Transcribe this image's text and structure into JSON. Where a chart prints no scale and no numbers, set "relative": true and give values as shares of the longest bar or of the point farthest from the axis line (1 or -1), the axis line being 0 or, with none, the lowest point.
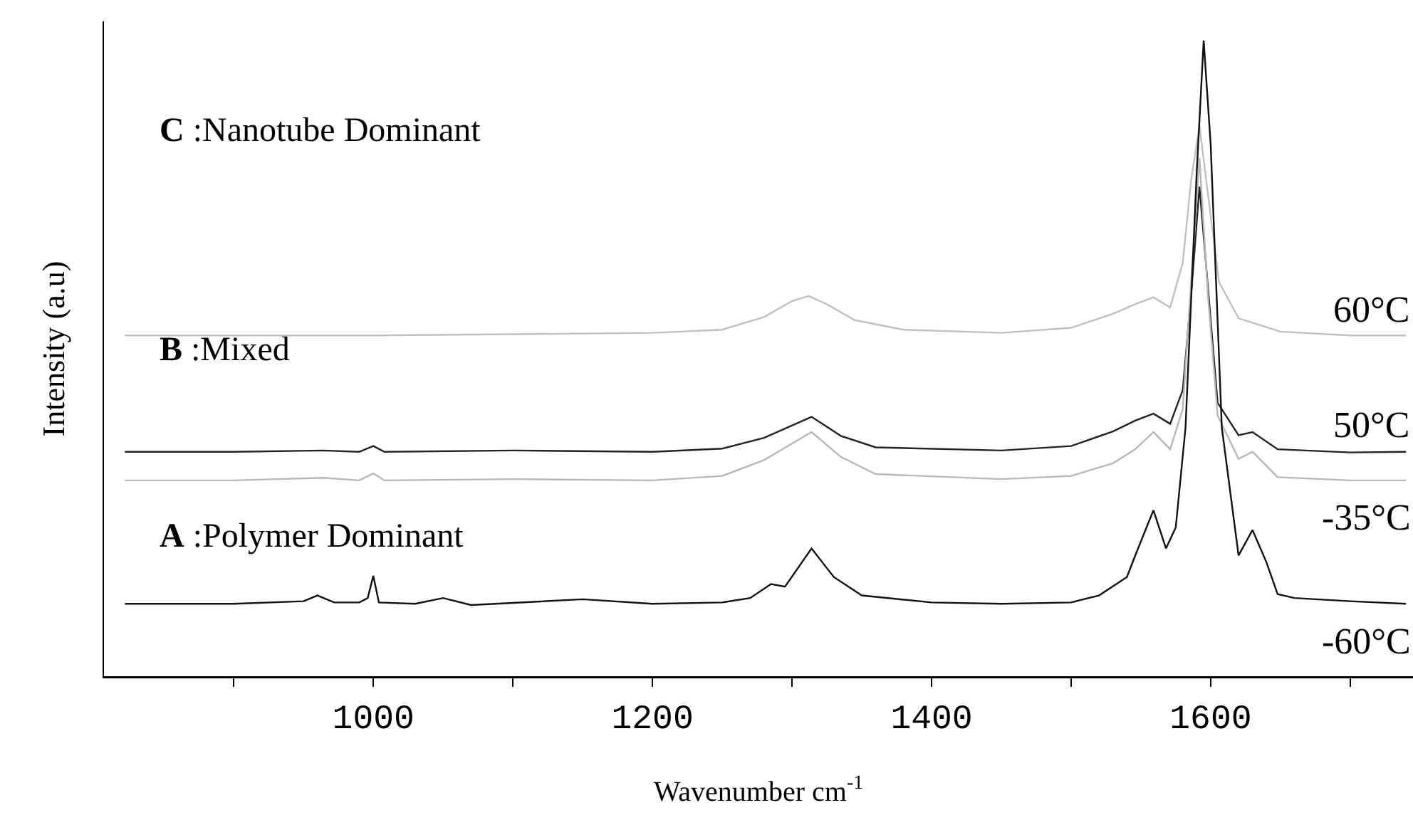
{
  "chart_data": {
    "type": "line",
    "relative": true,
    "xlabel": "Wavenumber cm$^{-1}$",
    "ylabel": "Intensity (a.u)",
    "xlim": [
      807,
      1745
    ],
    "xticks": [
      {
        "value": 900,
        "label": null
      },
      1000,
      {
        "value": 1100,
        "label": null
      },
      1200,
      {
        "value": 1300,
        "label": null
      },
      1400,
      {
        "value": 1500,
        "label": null
      },
      1600,
      {
        "value": 1700,
        "label": null
      }
    ],
    "grid": false,
    "legend": false,
    "marker": "none",
    "line_style": "solid",
    "annotations": [
      "C :Nanotube Dominant",
      "B :Mixed",
      "A :Polymer Dominant"
    ],
    "series": [
      {
        "name": "60°C",
        "color": "#c0c0c0",
        "x": [
          822,
          900,
          1000,
          1100,
          1200,
          1250,
          1280,
          1300,
          1312,
          1325,
          1345,
          1380,
          1450,
          1500,
          1530,
          1546,
          1559,
          1571,
          1580,
          1586,
          1592,
          1598,
          1606,
          1620,
          1650,
          1700,
          1740
        ],
        "values": [
          0.536,
          0.536,
          0.536,
          0.538,
          0.54,
          0.545,
          0.565,
          0.59,
          0.598,
          0.585,
          0.56,
          0.545,
          0.54,
          0.548,
          0.57,
          0.585,
          0.596,
          0.58,
          0.65,
          0.78,
          0.866,
          0.76,
          0.62,
          0.563,
          0.542,
          0.536,
          0.536
        ]
      },
      {
        "name": "50°C",
        "color": "#222222",
        "x": [
          822,
          900,
          964,
          990,
          1000,
          1008,
          1100,
          1200,
          1250,
          1280,
          1314,
          1335,
          1360,
          1450,
          1500,
          1530,
          1546,
          1559,
          1571,
          1580,
          1586,
          1592,
          1605,
          1620,
          1630,
          1648,
          1700,
          1740
        ],
        "values": [
          0.353,
          0.353,
          0.355,
          0.353,
          0.362,
          0.353,
          0.355,
          0.353,
          0.358,
          0.375,
          0.408,
          0.378,
          0.36,
          0.355,
          0.362,
          0.385,
          0.402,
          0.413,
          0.397,
          0.45,
          0.6,
          0.77,
          0.43,
          0.379,
          0.384,
          0.357,
          0.352,
          0.353
        ]
      },
      {
        "name": "-35°C",
        "color": "#b8b8b8",
        "x": [
          822,
          900,
          964,
          990,
          1000,
          1008,
          1100,
          1200,
          1250,
          1280,
          1314,
          1335,
          1360,
          1450,
          1500,
          1530,
          1546,
          1559,
          1571,
          1580,
          1586,
          1592,
          1598,
          1605,
          1620,
          1630,
          1648,
          1700,
          1740
        ],
        "values": [
          0.308,
          0.308,
          0.312,
          0.308,
          0.319,
          0.308,
          0.31,
          0.308,
          0.315,
          0.34,
          0.384,
          0.345,
          0.318,
          0.31,
          0.315,
          0.335,
          0.357,
          0.384,
          0.357,
          0.42,
          0.62,
          0.815,
          0.6,
          0.41,
          0.342,
          0.353,
          0.313,
          0.308,
          0.308
        ]
      },
      {
        "name": "-60°C",
        "color": "#111111",
        "x": [
          822,
          900,
          950,
          960,
          972,
          990,
          996,
          1000,
          1004,
          1030,
          1050,
          1070,
          1150,
          1200,
          1250,
          1270,
          1285,
          1295,
          1314,
          1330,
          1350,
          1400,
          1450,
          1500,
          1520,
          1540,
          1546,
          1559,
          1568,
          1575,
          1582,
          1590,
          1595,
          1600,
          1608,
          1620,
          1630,
          1640,
          1648,
          1660,
          1700,
          1740
        ],
        "values": [
          0.114,
          0.114,
          0.118,
          0.127,
          0.116,
          0.116,
          0.123,
          0.158,
          0.116,
          0.114,
          0.123,
          0.112,
          0.121,
          0.114,
          0.116,
          0.123,
          0.145,
          0.141,
          0.201,
          0.156,
          0.127,
          0.116,
          0.114,
          0.116,
          0.127,
          0.156,
          0.19,
          0.261,
          0.201,
          0.234,
          0.391,
          0.792,
          1,
          0.837,
          0.391,
          0.19,
          0.23,
          0.179,
          0.129,
          0.123,
          0.118,
          0.114
        ]
      }
    ]
  }
}
